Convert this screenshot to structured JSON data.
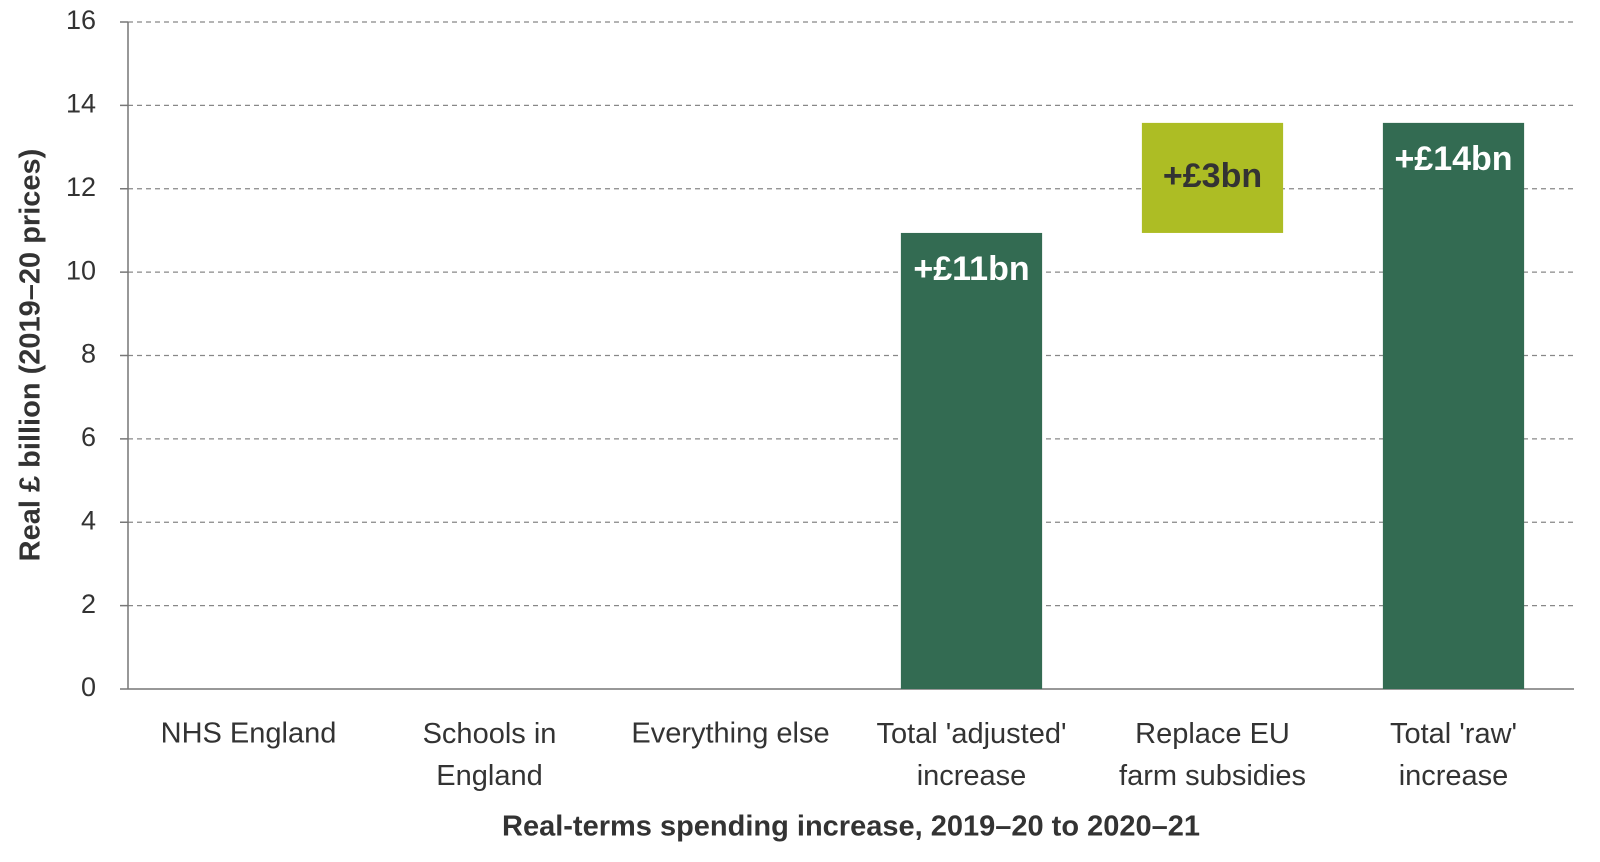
{
  "chart_data": {
    "type": "waterfall",
    "y_label": "Real £ billion (2019–20 prices)",
    "x_label": "Real-terms spending increase, 2019–20 to 2020–21",
    "categories": [
      "NHS England",
      "Schools in\nEngland",
      "Everything else",
      "Total 'adjusted'\nincrease",
      "Replace EU\nfarm subsidies",
      "Total 'raw'\nincrease"
    ],
    "values": [
      null,
      null,
      null,
      10.94,
      2.64,
      13.58
    ],
    "value_labels": [
      null,
      null,
      null,
      "+£11bn",
      "+£3bn",
      "+£14bn"
    ],
    "measure": [
      "relative",
      "relative",
      "relative",
      "total",
      "relative",
      "total"
    ],
    "colors": [
      null,
      null,
      null,
      "#336b52",
      "#adbd24",
      "#336b52"
    ],
    "label_colors": [
      null,
      null,
      null,
      "#ffffff",
      "#333333",
      "#ffffff"
    ],
    "ylim": [
      0,
      16
    ],
    "yticks": [
      0,
      2,
      4,
      6,
      8,
      10,
      12,
      14,
      16
    ],
    "grid": true
  }
}
